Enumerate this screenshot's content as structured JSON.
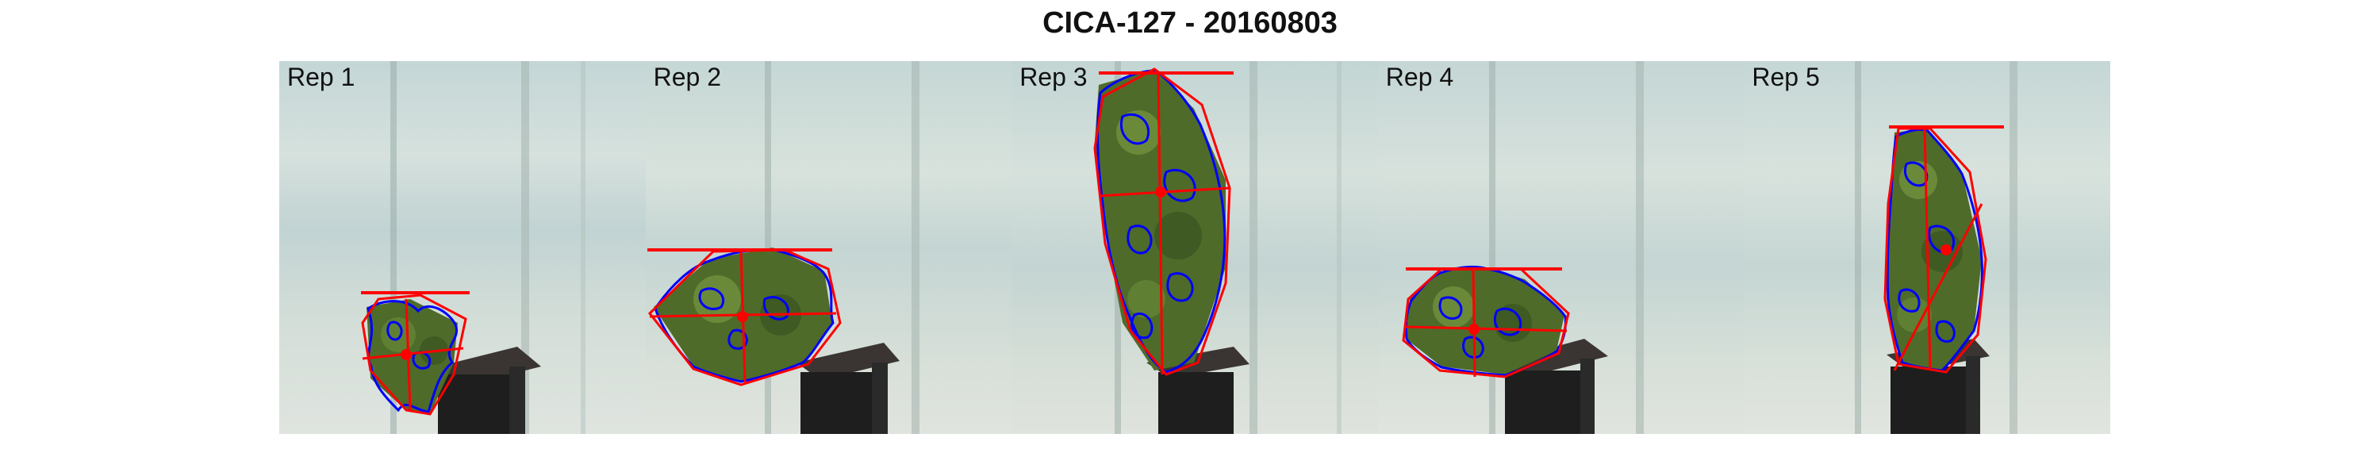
{
  "title": "CICA-127 - 20160803",
  "panels": [
    {
      "label": "Rep 1"
    },
    {
      "label": "Rep 2"
    },
    {
      "label": "Rep 3"
    },
    {
      "label": "Rep 4"
    },
    {
      "label": "Rep 5"
    }
  ],
  "colors": {
    "hull": "#ff0000",
    "contour": "#0000ff",
    "foliage": "#4e6b2a",
    "pot": "#1e1e1e",
    "background": "#c6d7d8"
  }
}
